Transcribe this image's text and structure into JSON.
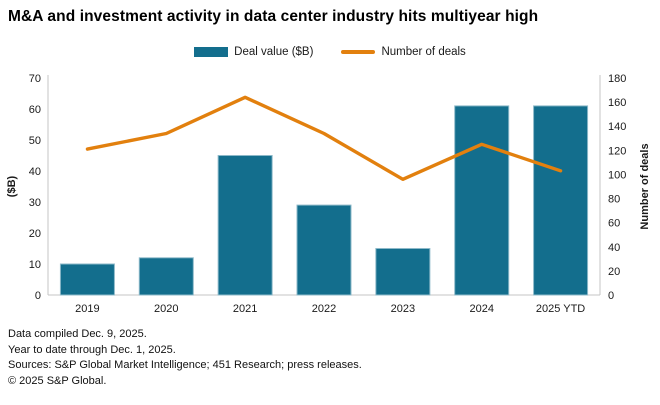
{
  "title": "M&A and investment activity in data center industry hits multiyear high",
  "legend": [
    {
      "label": "Deal value ($B)",
      "type": "bar",
      "color": "#136e8d"
    },
    {
      "label": "Number of deals",
      "type": "line",
      "color": "#e2800e"
    }
  ],
  "chart_data": {
    "type": "combo-bar-line",
    "title": "M&A and investment activity in data center industry hits multiyear high",
    "categories": [
      "2019",
      "2020",
      "2021",
      "2022",
      "2023",
      "2024",
      "2025 YTD"
    ],
    "series": [
      {
        "name": "Deal value ($B)",
        "type": "bar",
        "axis": "left",
        "color": "#136e8d",
        "bar_edge_color": "#8db9c9",
        "values": [
          10,
          12,
          45,
          29,
          15,
          61,
          61
        ]
      },
      {
        "name": "Number of deals",
        "type": "line",
        "axis": "right",
        "color": "#e2800e",
        "values": [
          121,
          134,
          164,
          134,
          96,
          125,
          103
        ]
      }
    ],
    "left_axis": {
      "label": "($B)",
      "min": 0,
      "max": 70,
      "step": 10
    },
    "right_axis": {
      "label": "Number of deals",
      "min": 0,
      "max": 180,
      "step": 20
    },
    "axis_line_color": "#c4c4c4",
    "tick_text_color": "#1a1a1a",
    "grid": false,
    "legend_position": "top-center"
  },
  "footer": {
    "lines": [
      "Data compiled Dec. 9, 2025.",
      "Year to date through Dec. 1, 2025.",
      "Sources: S&P Global Market Intelligence; 451 Research; press releases.",
      "© 2025 S&P Global."
    ]
  }
}
